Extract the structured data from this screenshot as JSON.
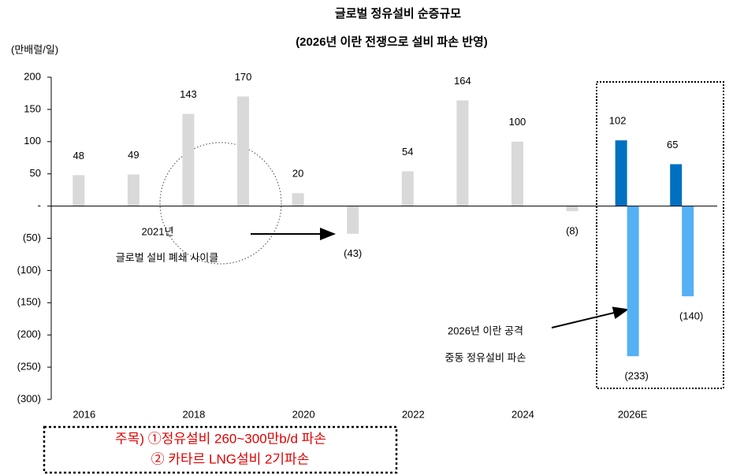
{
  "chart_data": {
    "type": "bar",
    "title": "글로벌 정유설비 순증규모",
    "subtitle": "(2026년 이란 전쟁으로 설비 파손 반영)",
    "y_label": "(만배럴/일)",
    "categories": [
      "2016",
      null,
      "2018",
      null,
      "2020",
      null,
      "2022",
      null,
      "2024",
      null,
      "2026E",
      null
    ],
    "series": [
      {
        "color": "#d9d9d9",
        "values": [
          48,
          49,
          143,
          170,
          20,
          -43,
          54,
          164,
          100,
          -8,
          null,
          null
        ],
        "value_labels": [
          null,
          null,
          null,
          null,
          null,
          "(43)",
          null,
          null,
          null,
          "(8)",
          null,
          null
        ]
      },
      {
        "color": "#0070c0",
        "values": [
          null,
          null,
          null,
          null,
          null,
          null,
          null,
          null,
          null,
          null,
          102,
          65
        ]
      },
      {
        "color": "#55b0f5",
        "values": [
          null,
          null,
          null,
          null,
          null,
          null,
          null,
          null,
          null,
          null,
          -233,
          -140
        ],
        "value_labels": [
          null,
          null,
          null,
          null,
          null,
          null,
          null,
          null,
          null,
          null,
          "(233)",
          "(140)"
        ]
      }
    ],
    "ylim": [
      -300,
      200
    ],
    "yticks": [
      200,
      150,
      100,
      50,
      {
        "value": 0,
        "label": "-"
      },
      {
        "value": -50,
        "label": "(50)"
      },
      {
        "value": -100,
        "label": "(100)"
      },
      {
        "value": -150,
        "label": "(150)"
      },
      {
        "value": -200,
        "label": "(200)"
      },
      {
        "value": -250,
        "label": "(250)"
      },
      {
        "value": -300,
        "label": "(300)"
      }
    ],
    "annotations": [
      "2021년",
      "글로벌 설비 폐쇄 사이클",
      "2026년 이란 공격",
      "중동 정유설비 파손"
    ],
    "note": [
      "주목) ①정유설비 260~300만b/d 파손",
      "② 카타르 LNG설비 2기파손"
    ]
  }
}
